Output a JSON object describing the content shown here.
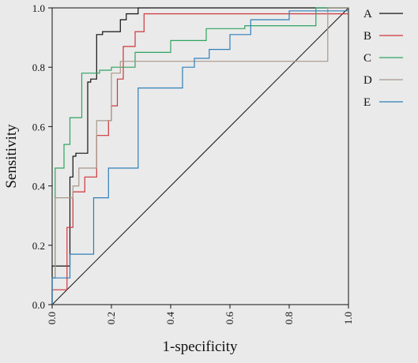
{
  "chart_data": {
    "type": "line",
    "title": "",
    "xlabel": "1-specificity",
    "ylabel": "Sensitivity",
    "xlim": [
      0.0,
      1.0
    ],
    "ylim": [
      0.0,
      1.0
    ],
    "xticks": [
      "0.0",
      "0.2",
      "0.4",
      "0.6",
      "0.8",
      "1.0"
    ],
    "yticks": [
      "0.0",
      "0.2",
      "0.4",
      "0.6",
      "0.8",
      "1.0"
    ],
    "xtick_values": [
      0,
      0.2,
      0.4,
      0.6,
      0.8,
      1.0
    ],
    "ytick_values": [
      0,
      0.2,
      0.4,
      0.6,
      0.8,
      1.0
    ],
    "grid": false,
    "legend_position": "right",
    "reference_line": {
      "x": [
        0,
        1
      ],
      "y": [
        0,
        1
      ],
      "color": "#111111"
    },
    "series": [
      {
        "name": "A",
        "color": "#111111",
        "x": [
          0,
          0,
          0.06,
          0.06,
          0.07,
          0.07,
          0.08,
          0.08,
          0.12,
          0.12,
          0.13,
          0.13,
          0.15,
          0.15,
          0.17,
          0.17,
          0.23,
          0.23,
          0.25,
          0.25,
          0.29,
          0.29,
          1.0
        ],
        "y": [
          0,
          0.13,
          0.13,
          0.43,
          0.43,
          0.5,
          0.5,
          0.51,
          0.51,
          0.75,
          0.75,
          0.76,
          0.76,
          0.91,
          0.91,
          0.92,
          0.92,
          0.96,
          0.96,
          0.98,
          0.98,
          1.0,
          1.0
        ]
      },
      {
        "name": "B",
        "color": "#d0353b",
        "x": [
          0,
          0,
          0.05,
          0.05,
          0.07,
          0.07,
          0.11,
          0.11,
          0.15,
          0.15,
          0.19,
          0.19,
          0.2,
          0.2,
          0.22,
          0.22,
          0.24,
          0.24,
          0.28,
          0.28,
          0.31,
          0.31,
          1.0
        ],
        "y": [
          0,
          0.05,
          0.05,
          0.26,
          0.26,
          0.38,
          0.38,
          0.43,
          0.43,
          0.57,
          0.57,
          0.62,
          0.62,
          0.67,
          0.67,
          0.76,
          0.76,
          0.87,
          0.87,
          0.92,
          0.92,
          0.98,
          0.98
        ]
      },
      {
        "name": "C",
        "color": "#2fa360",
        "x": [
          0,
          0,
          0.01,
          0.01,
          0.04,
          0.04,
          0.06,
          0.06,
          0.1,
          0.1,
          0.16,
          0.16,
          0.2,
          0.2,
          0.28,
          0.28,
          0.4,
          0.4,
          0.52,
          0.52,
          0.65,
          0.65,
          0.89,
          0.89,
          1.0
        ],
        "y": [
          0,
          0.09,
          0.09,
          0.46,
          0.46,
          0.54,
          0.54,
          0.63,
          0.63,
          0.78,
          0.78,
          0.79,
          0.79,
          0.8,
          0.8,
          0.85,
          0.85,
          0.89,
          0.89,
          0.93,
          0.93,
          0.94,
          0.94,
          1.0,
          1.0
        ]
      },
      {
        "name": "D",
        "color": "#a8988a",
        "x": [
          0,
          0,
          0.01,
          0.01,
          0.07,
          0.07,
          0.09,
          0.09,
          0.15,
          0.15,
          0.2,
          0.2,
          0.23,
          0.23,
          0.93,
          0.93,
          1.0
        ],
        "y": [
          0,
          0.09,
          0.09,
          0.36,
          0.36,
          0.4,
          0.4,
          0.46,
          0.46,
          0.62,
          0.62,
          0.78,
          0.78,
          0.82,
          0.82,
          1.0,
          1.0
        ]
      },
      {
        "name": "E",
        "color": "#2f7fb9",
        "x": [
          0,
          0,
          0.06,
          0.06,
          0.14,
          0.14,
          0.19,
          0.19,
          0.29,
          0.29,
          0.44,
          0.44,
          0.48,
          0.48,
          0.53,
          0.53,
          0.6,
          0.6,
          0.67,
          0.67,
          0.8,
          0.8,
          1.0
        ],
        "y": [
          0,
          0.09,
          0.09,
          0.17,
          0.17,
          0.36,
          0.36,
          0.46,
          0.46,
          0.73,
          0.73,
          0.8,
          0.8,
          0.83,
          0.83,
          0.86,
          0.86,
          0.91,
          0.91,
          0.96,
          0.96,
          0.99,
          0.99
        ]
      }
    ]
  }
}
